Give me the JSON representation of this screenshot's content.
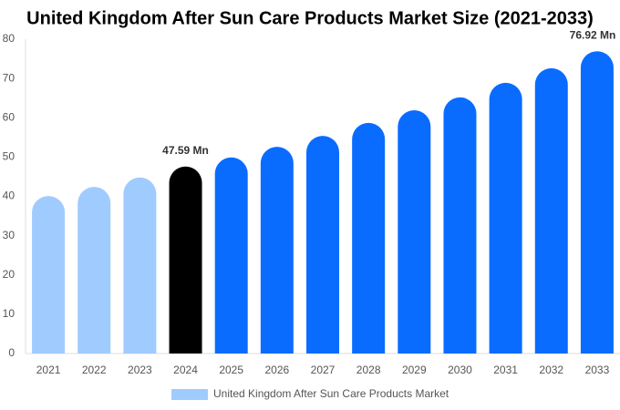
{
  "chart_data": {
    "type": "bar",
    "title": "United Kingdom After Sun Care Products Market Size (2021-2033)",
    "categories": [
      "2021",
      "2022",
      "2023",
      "2024",
      "2025",
      "2026",
      "2027",
      "2028",
      "2029",
      "2030",
      "2031",
      "2032",
      "2033"
    ],
    "series": [
      {
        "name": "United Kingdom After Sun Care Products Market",
        "color": "#a0cbff",
        "values": [
          40.1,
          42.4,
          44.8,
          47.59,
          49.9,
          52.6,
          55.4,
          58.7,
          61.9,
          65.2,
          68.9,
          72.6,
          76.92
        ],
        "value_labels": [
          null,
          null,
          null,
          "47.59 Mn",
          null,
          null,
          null,
          null,
          null,
          null,
          null,
          null,
          "76.92 Mn"
        ],
        "colors": [
          "#a0cbff",
          "#a0cbff",
          "#a0cbff",
          "#000000",
          "#0a6cff",
          "#0a6cff",
          "#0a6cff",
          "#0a6cff",
          "#0a6cff",
          "#0a6cff",
          "#0a6cff",
          "#0a6cff",
          "#0a6cff"
        ]
      }
    ],
    "ylim": [
      0,
      80
    ],
    "yticks": [
      0,
      10,
      20,
      30,
      40,
      50,
      60,
      70,
      80
    ],
    "legend": "bottom"
  }
}
